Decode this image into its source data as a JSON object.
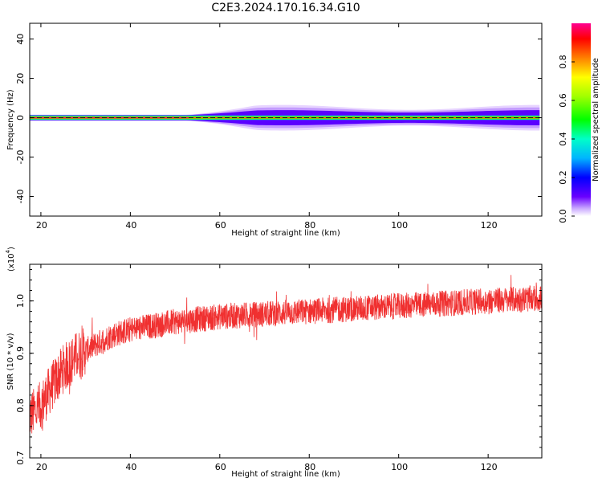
{
  "title": "C2E3.2024.170.16.34.G10",
  "chart_data": [
    {
      "type": "heatmap",
      "xlabel": "Height of straight line (km)",
      "ylabel": "Frequency (Hz)",
      "xlim": [
        17.5,
        132
      ],
      "ylim": [
        -50,
        48
      ],
      "xticks": [
        20,
        40,
        60,
        80,
        100,
        120
      ],
      "yticks": [
        -40,
        -20,
        0,
        20,
        40
      ],
      "colorbar": {
        "label": "Normalized spectral amplitude",
        "range": [
          0,
          1
        ],
        "ticks": [
          0.0,
          0.2,
          0.4,
          0.6,
          0.8
        ],
        "colormap": "rainbow (violet low to magenta high)"
      },
      "features": {
        "dominant_frequency_hz": 0,
        "narrow_band_halfwidth_hz": 1.5,
        "spread_starts_km": 53,
        "spread_halfwidth_hz_max": 5
      },
      "grid": false
    },
    {
      "type": "line",
      "xlabel": "Height of straight line (km)",
      "ylabel": "SNR (10 * v/v)",
      "yscale_label": "(x10",
      "yscale_exp": "4",
      "yscale_close": ")",
      "xlim": [
        17.5,
        132
      ],
      "ylim": [
        0.7,
        1.07
      ],
      "xticks": [
        20,
        40,
        60,
        80,
        100,
        120
      ],
      "yticks": [
        0.7,
        0.8,
        0.9,
        1.0
      ],
      "ytick_labels": [
        "0.7",
        "0.8",
        "0.9",
        "1.0"
      ],
      "color": "#f03030",
      "trend_x": [
        17.5,
        20,
        22,
        25,
        28,
        32,
        36,
        40,
        50,
        60,
        70,
        80,
        90,
        100,
        110,
        120,
        132
      ],
      "trend_y": [
        0.78,
        0.8,
        0.83,
        0.87,
        0.895,
        0.915,
        0.935,
        0.945,
        0.96,
        0.97,
        0.975,
        0.98,
        0.985,
        0.99,
        0.995,
        1.0,
        1.005
      ],
      "noise_amplitude": 0.025,
      "grid": false
    }
  ],
  "colors": {
    "line": "#f03030",
    "axes": "#000000",
    "background": "#ffffff"
  }
}
